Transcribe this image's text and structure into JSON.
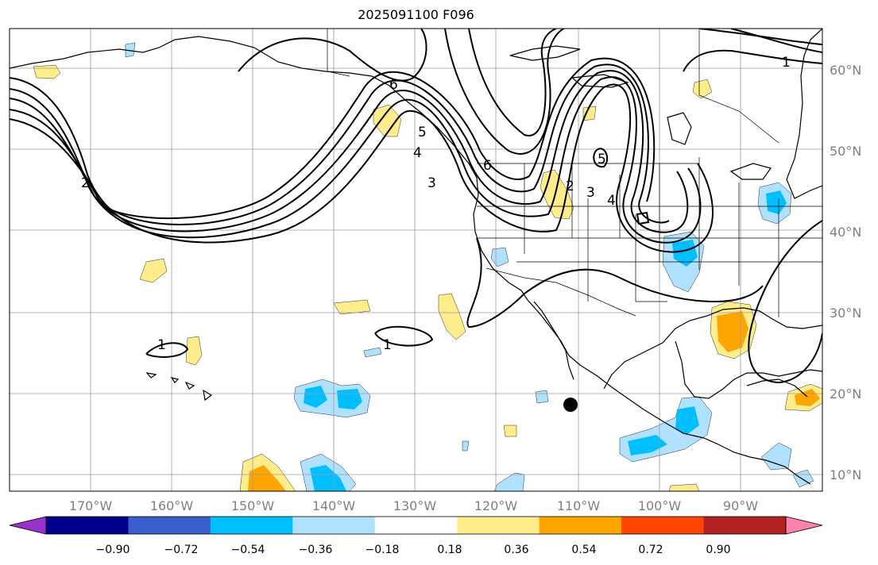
{
  "title": "2025091100 F096",
  "map": {
    "lat_labels": [
      "60°N",
      "50°N",
      "40°N",
      "30°N",
      "20°N",
      "10°N"
    ],
    "lon_labels": [
      "170°W",
      "160°W",
      "150°W",
      "140°W",
      "130°W",
      "120°W",
      "110°W",
      "100°W",
      "90°W"
    ],
    "contour_labels": [
      "1",
      "1",
      "1",
      "2",
      "2",
      "3",
      "3",
      "4",
      "4",
      "5",
      "5",
      "6",
      "6"
    ],
    "marker": "storm-position-dot"
  },
  "colorbar": {
    "colors": [
      "#9932cc",
      "#00008b",
      "#3a5fcd",
      "#00bfff",
      "#b0e2ff",
      "#ffffff",
      "#ffec8b",
      "#ffa500",
      "#ff4500",
      "#b22222",
      "#ff82ab"
    ],
    "tick_labels": [
      "−0.90",
      "−0.72",
      "−0.54",
      "−0.36",
      "−0.18",
      "0.18",
      "0.36",
      "0.54",
      "0.72",
      "0.90"
    ]
  },
  "colors": {
    "pos_light": "#ffec8b",
    "pos_mid": "#ffa500",
    "neg_light": "#b0e2ff",
    "neg_mid": "#00bfff",
    "grid": "#9a9a9a",
    "label": "#808080"
  }
}
